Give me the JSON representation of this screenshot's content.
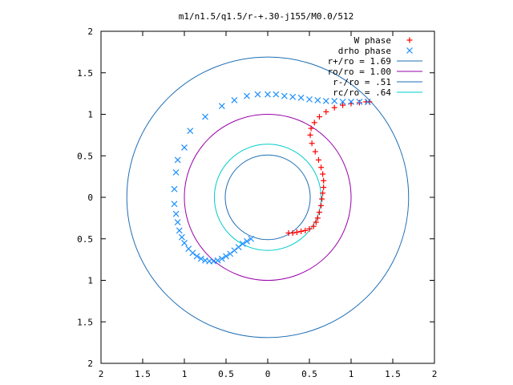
{
  "chart_data": {
    "type": "scatter",
    "title": "m1/n1.5/q1.5/r-+.30-j155/M0.0/512",
    "xlabel": "",
    "ylabel": "",
    "xlim": [
      -2,
      2
    ],
    "ylim": [
      -2,
      2
    ],
    "x_ticks": [
      -2,
      -1.5,
      -1,
      -0.5,
      0,
      0.5,
      1,
      1.5,
      2
    ],
    "y_ticks": [
      -2,
      -1.5,
      -1,
      -0.5,
      0,
      0.5,
      1,
      1.5,
      2
    ],
    "x_tick_labels": [
      "2",
      "1.5",
      "1",
      "0.5",
      "0",
      "0.5",
      "1",
      "1.5",
      "2"
    ],
    "y_tick_labels": [
      "2",
      "1.5",
      "1",
      "0.5",
      "0",
      "0.5",
      "1",
      "1.5",
      "2"
    ],
    "grid": false,
    "legend_position": "top-right",
    "series": [
      {
        "name": "W phase",
        "marker": "plus",
        "color": "#ff0000",
        "points": [
          [
            0.25,
            -0.43
          ],
          [
            0.3,
            -0.43
          ],
          [
            0.35,
            -0.42
          ],
          [
            0.4,
            -0.41
          ],
          [
            0.45,
            -0.4
          ],
          [
            0.5,
            -0.38
          ],
          [
            0.55,
            -0.35
          ],
          [
            0.58,
            -0.3
          ],
          [
            0.6,
            -0.25
          ],
          [
            0.62,
            -0.18
          ],
          [
            0.64,
            -0.1
          ],
          [
            0.65,
            -0.02
          ],
          [
            0.66,
            0.05
          ],
          [
            0.67,
            0.12
          ],
          [
            0.67,
            0.2
          ],
          [
            0.66,
            0.28
          ],
          [
            0.64,
            0.36
          ],
          [
            0.61,
            0.45
          ],
          [
            0.57,
            0.55
          ],
          [
            0.53,
            0.65
          ],
          [
            0.51,
            0.75
          ],
          [
            0.52,
            0.83
          ],
          [
            0.56,
            0.9
          ],
          [
            0.62,
            0.97
          ],
          [
            0.7,
            1.03
          ],
          [
            0.8,
            1.08
          ],
          [
            0.9,
            1.11
          ],
          [
            1.0,
            1.13
          ],
          [
            1.1,
            1.14
          ],
          [
            1.18,
            1.15
          ],
          [
            1.22,
            1.15
          ]
        ]
      },
      {
        "name": "drho phase",
        "marker": "cross",
        "color": "#1e90ff",
        "points": [
          [
            -0.2,
            -0.5
          ],
          [
            -0.25,
            -0.53
          ],
          [
            -0.3,
            -0.56
          ],
          [
            -0.35,
            -0.6
          ],
          [
            -0.4,
            -0.64
          ],
          [
            -0.45,
            -0.68
          ],
          [
            -0.5,
            -0.71
          ],
          [
            -0.55,
            -0.74
          ],
          [
            -0.6,
            -0.76
          ],
          [
            -0.65,
            -0.77
          ],
          [
            -0.7,
            -0.77
          ],
          [
            -0.75,
            -0.76
          ],
          [
            -0.8,
            -0.74
          ],
          [
            -0.85,
            -0.71
          ],
          [
            -0.9,
            -0.67
          ],
          [
            -0.95,
            -0.62
          ],
          [
            -1.0,
            -0.55
          ],
          [
            -1.03,
            -0.48
          ],
          [
            -1.06,
            -0.4
          ],
          [
            -1.08,
            -0.3
          ],
          [
            -1.1,
            -0.2
          ],
          [
            -1.12,
            -0.08
          ],
          [
            -1.12,
            0.1
          ],
          [
            -1.1,
            0.3
          ],
          [
            -1.08,
            0.45
          ],
          [
            -1.0,
            0.6
          ],
          [
            -0.93,
            0.8
          ],
          [
            -0.75,
            0.97
          ],
          [
            -0.55,
            1.1
          ],
          [
            -0.4,
            1.17
          ],
          [
            -0.25,
            1.22
          ],
          [
            -0.12,
            1.24
          ],
          [
            0.0,
            1.24
          ],
          [
            0.1,
            1.24
          ],
          [
            0.2,
            1.22
          ],
          [
            0.3,
            1.21
          ],
          [
            0.4,
            1.2
          ],
          [
            0.5,
            1.18
          ],
          [
            0.6,
            1.17
          ],
          [
            0.7,
            1.16
          ],
          [
            0.8,
            1.16
          ],
          [
            0.9,
            1.15
          ],
          [
            1.0,
            1.15
          ],
          [
            1.1,
            1.15
          ],
          [
            1.2,
            1.15
          ]
        ]
      },
      {
        "name": "r+/ro = 1.69",
        "type": "circle",
        "radius": 1.69,
        "color": "#1f6fb5"
      },
      {
        "name": "ro/ro = 1.00",
        "type": "circle",
        "radius": 1.0,
        "color": "#9900aa"
      },
      {
        "name": "r-/ro = .51",
        "type": "circle",
        "radius": 0.51,
        "color": "#1f6fb5"
      },
      {
        "name": "rc/ro = .64",
        "type": "circle",
        "radius": 0.64,
        "color": "#00cccc"
      }
    ]
  }
}
